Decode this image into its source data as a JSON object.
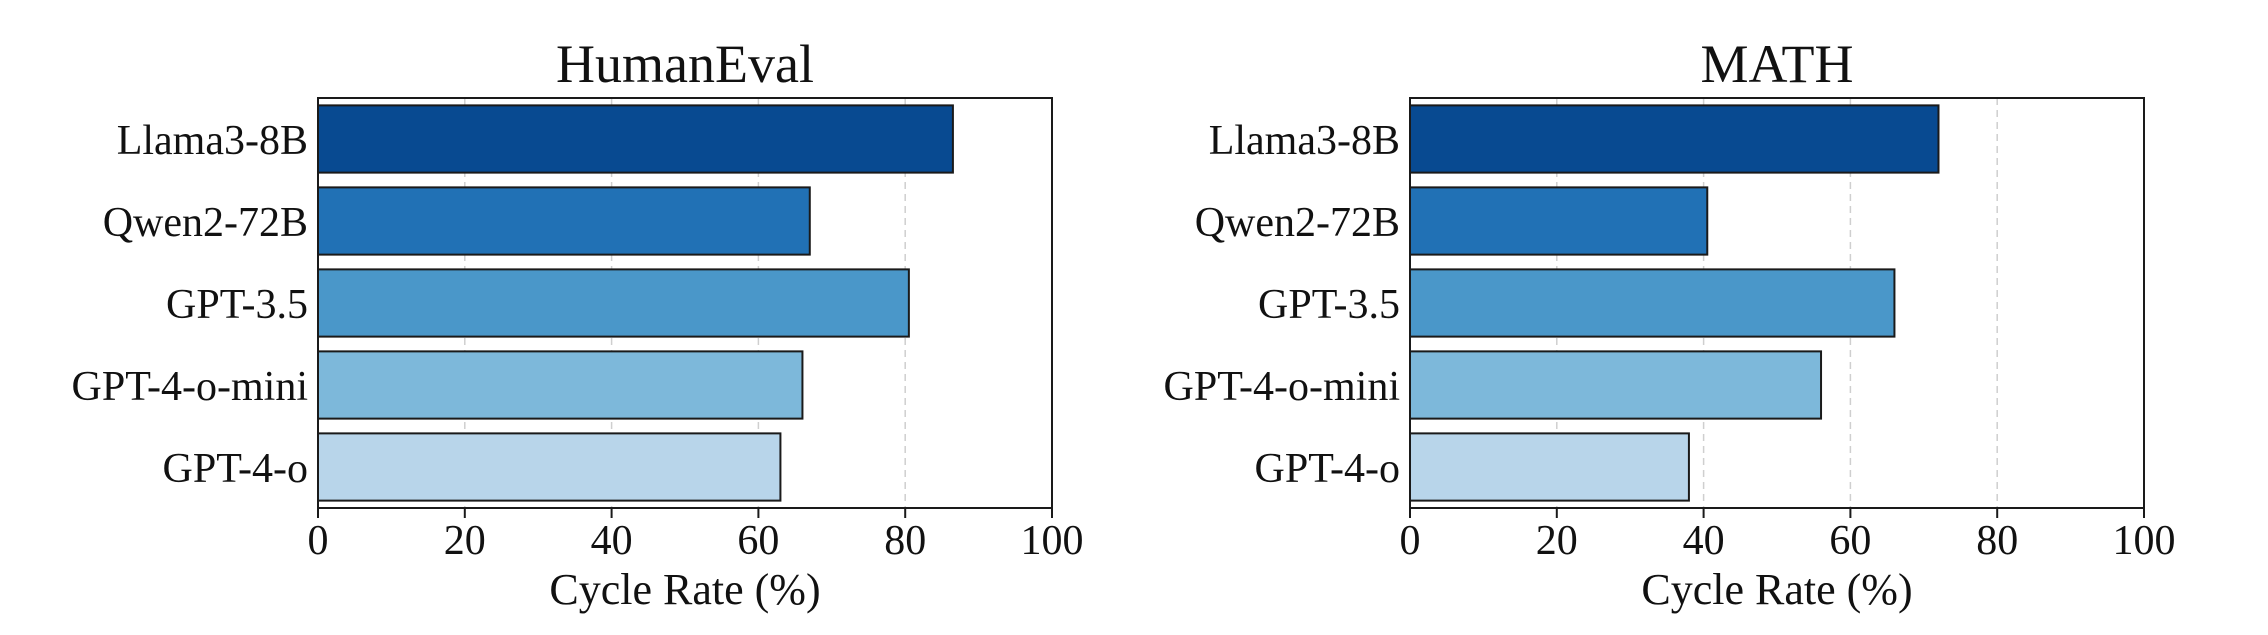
{
  "chart_data": [
    {
      "type": "bar",
      "orientation": "horizontal",
      "title": "HumanEval",
      "xlabel": "Cycle Rate (%)",
      "ylabel": "",
      "xlim": [
        0,
        100
      ],
      "xticks": [
        "0",
        "20",
        "40",
        "60",
        "80",
        "100"
      ],
      "categories": [
        "Llama3-8B",
        "Qwen2-72B",
        "GPT-3.5",
        "GPT-4-o-mini",
        "GPT-4-o"
      ],
      "values": [
        86.5,
        67,
        80.5,
        66,
        63
      ],
      "colors": [
        "#084a91",
        "#2171b5",
        "#4a97c9",
        "#7db8da",
        "#b8d5ea"
      ],
      "grid": "x-dashed",
      "legend": "none"
    },
    {
      "type": "bar",
      "orientation": "horizontal",
      "title": "MATH",
      "xlabel": "Cycle Rate (%)",
      "ylabel": "",
      "xlim": [
        0,
        100
      ],
      "xticks": [
        "0",
        "20",
        "40",
        "60",
        "80",
        "100"
      ],
      "categories": [
        "Llama3-8B",
        "Qwen2-72B",
        "GPT-3.5",
        "GPT-4-o-mini",
        "GPT-4-o"
      ],
      "values": [
        72,
        40.5,
        66,
        56,
        38
      ],
      "colors": [
        "#084a91",
        "#2171b5",
        "#4a97c9",
        "#7db8da",
        "#b8d5ea"
      ],
      "grid": "x-dashed",
      "legend": "none"
    }
  ]
}
